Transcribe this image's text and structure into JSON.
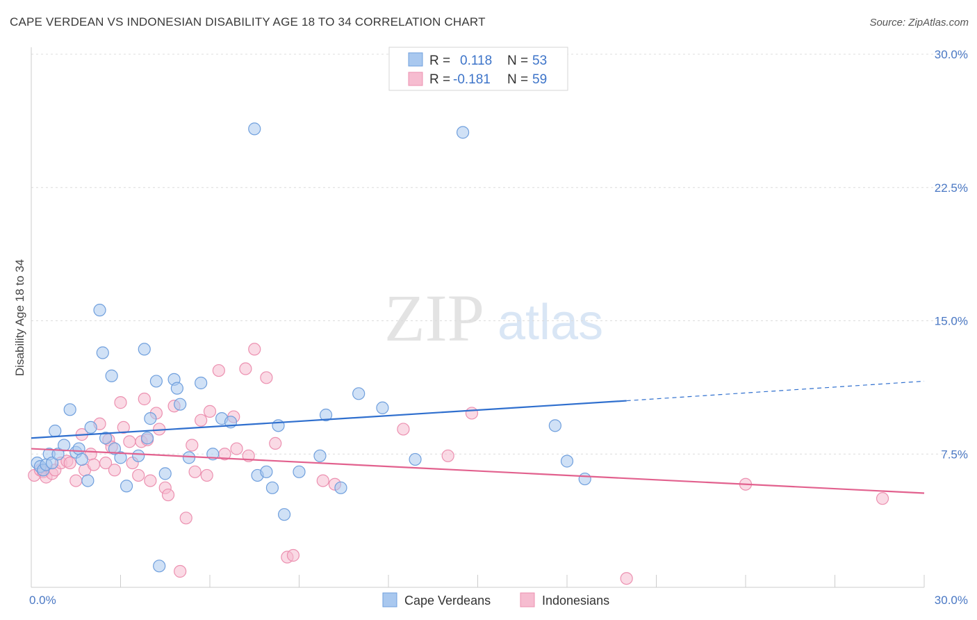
{
  "title": "CAPE VERDEAN VS INDONESIAN DISABILITY AGE 18 TO 34 CORRELATION CHART",
  "source": "Source: ZipAtlas.com",
  "watermark": {
    "zip": "ZIP",
    "atlas": "atlas"
  },
  "colors": {
    "blue_fill": "#a9c8ef",
    "blue_stroke": "#6f9fdd",
    "blue_line": "#2f6fce",
    "pink_fill": "#f6bcd0",
    "pink_stroke": "#ec90b0",
    "pink_line": "#e2618e",
    "tick_text": "#4a78c4"
  },
  "legend": {
    "r_label": "R =",
    "n_label": "N =",
    "rows": [
      {
        "series": "Cape Verdeans",
        "r": "0.118",
        "n": "53"
      },
      {
        "series": "Indonesians",
        "r": "-0.181",
        "n": "59"
      }
    ]
  },
  "chart_data": {
    "type": "scatter",
    "title": "CAPE VERDEAN VS INDONESIAN DISABILITY AGE 18 TO 34 CORRELATION CHART",
    "xlabel": "",
    "ylabel": "Disability Age 18 to 34",
    "xlim": [
      0,
      30
    ],
    "ylim": [
      0,
      30
    ],
    "x_tick_labels": [
      "0.0%",
      "30.0%"
    ],
    "y_ticks": [
      7.5,
      15.0,
      22.5,
      30.0
    ],
    "y_tick_labels": [
      "7.5%",
      "15.0%",
      "22.5%",
      "30.0%"
    ],
    "grid": true,
    "legend_position": "top-center",
    "series": [
      {
        "name": "Cape Verdeans",
        "color": "#a9c8ef",
        "trend": {
          "x0": 0,
          "y0": 8.4,
          "x1": 20,
          "y1": 10.5,
          "dashed_to_x": 30,
          "dashed_to_y": 11.6
        },
        "points": [
          [
            0.2,
            7.0
          ],
          [
            0.3,
            6.8
          ],
          [
            0.4,
            6.6
          ],
          [
            0.5,
            6.9
          ],
          [
            0.6,
            7.5
          ],
          [
            0.7,
            7.0
          ],
          [
            0.8,
            8.8
          ],
          [
            0.9,
            7.5
          ],
          [
            1.1,
            8.0
          ],
          [
            1.3,
            10.0
          ],
          [
            1.5,
            7.6
          ],
          [
            1.6,
            7.8
          ],
          [
            1.7,
            7.2
          ],
          [
            1.9,
            6.0
          ],
          [
            2.0,
            9.0
          ],
          [
            2.3,
            15.6
          ],
          [
            2.4,
            13.2
          ],
          [
            2.5,
            8.4
          ],
          [
            2.7,
            11.9
          ],
          [
            2.8,
            7.8
          ],
          [
            3.0,
            7.3
          ],
          [
            3.2,
            5.7
          ],
          [
            3.6,
            7.4
          ],
          [
            3.8,
            13.4
          ],
          [
            3.9,
            8.4
          ],
          [
            4.0,
            9.5
          ],
          [
            4.2,
            11.6
          ],
          [
            4.3,
            1.2
          ],
          [
            4.5,
            6.4
          ],
          [
            4.8,
            11.7
          ],
          [
            4.9,
            11.2
          ],
          [
            5.0,
            10.3
          ],
          [
            5.3,
            7.3
          ],
          [
            5.7,
            11.5
          ],
          [
            6.1,
            7.5
          ],
          [
            6.4,
            9.5
          ],
          [
            6.7,
            9.3
          ],
          [
            7.5,
            25.8
          ],
          [
            7.6,
            6.3
          ],
          [
            7.9,
            6.5
          ],
          [
            8.1,
            5.6
          ],
          [
            8.3,
            9.1
          ],
          [
            8.5,
            4.1
          ],
          [
            9.0,
            6.5
          ],
          [
            9.7,
            7.4
          ],
          [
            9.9,
            9.7
          ],
          [
            10.4,
            5.6
          ],
          [
            11.0,
            10.9
          ],
          [
            11.8,
            10.1
          ],
          [
            12.9,
            7.2
          ],
          [
            14.5,
            25.6
          ],
          [
            17.6,
            9.1
          ],
          [
            18.0,
            7.1
          ],
          [
            18.6,
            6.1
          ]
        ]
      },
      {
        "name": "Indonesians",
        "color": "#f6bcd0",
        "trend": {
          "x0": 0,
          "y0": 7.8,
          "x1": 30,
          "y1": 5.3
        },
        "points": [
          [
            0.1,
            6.3
          ],
          [
            0.3,
            6.6
          ],
          [
            0.4,
            6.5
          ],
          [
            0.5,
            6.2
          ],
          [
            0.7,
            6.4
          ],
          [
            0.8,
            6.6
          ],
          [
            1.0,
            7.0
          ],
          [
            1.2,
            7.1
          ],
          [
            1.3,
            7.0
          ],
          [
            1.5,
            6.0
          ],
          [
            1.7,
            8.6
          ],
          [
            1.8,
            6.6
          ],
          [
            2.0,
            7.5
          ],
          [
            2.1,
            6.9
          ],
          [
            2.3,
            9.2
          ],
          [
            2.5,
            7.0
          ],
          [
            2.6,
            8.3
          ],
          [
            2.7,
            7.9
          ],
          [
            2.8,
            6.6
          ],
          [
            3.0,
            10.4
          ],
          [
            3.1,
            9.0
          ],
          [
            3.3,
            8.2
          ],
          [
            3.4,
            7.0
          ],
          [
            3.6,
            6.3
          ],
          [
            3.7,
            8.2
          ],
          [
            3.8,
            10.6
          ],
          [
            3.9,
            8.3
          ],
          [
            4.0,
            6.0
          ],
          [
            4.2,
            9.8
          ],
          [
            4.3,
            8.9
          ],
          [
            4.5,
            5.6
          ],
          [
            4.6,
            5.2
          ],
          [
            4.8,
            10.2
          ],
          [
            5.0,
            0.9
          ],
          [
            5.2,
            3.9
          ],
          [
            5.4,
            8.0
          ],
          [
            5.5,
            6.5
          ],
          [
            5.7,
            9.4
          ],
          [
            5.9,
            6.3
          ],
          [
            6.0,
            9.9
          ],
          [
            6.3,
            12.2
          ],
          [
            6.5,
            7.5
          ],
          [
            6.8,
            9.6
          ],
          [
            6.9,
            7.8
          ],
          [
            7.2,
            12.3
          ],
          [
            7.3,
            7.4
          ],
          [
            7.5,
            13.4
          ],
          [
            7.9,
            11.8
          ],
          [
            8.2,
            8.1
          ],
          [
            8.6,
            1.7
          ],
          [
            8.8,
            1.8
          ],
          [
            9.8,
            6.0
          ],
          [
            10.2,
            5.8
          ],
          [
            12.5,
            8.9
          ],
          [
            14.0,
            7.4
          ],
          [
            14.8,
            9.8
          ],
          [
            20.0,
            0.5
          ],
          [
            24.0,
            5.8
          ],
          [
            28.6,
            5.0
          ]
        ]
      }
    ]
  }
}
